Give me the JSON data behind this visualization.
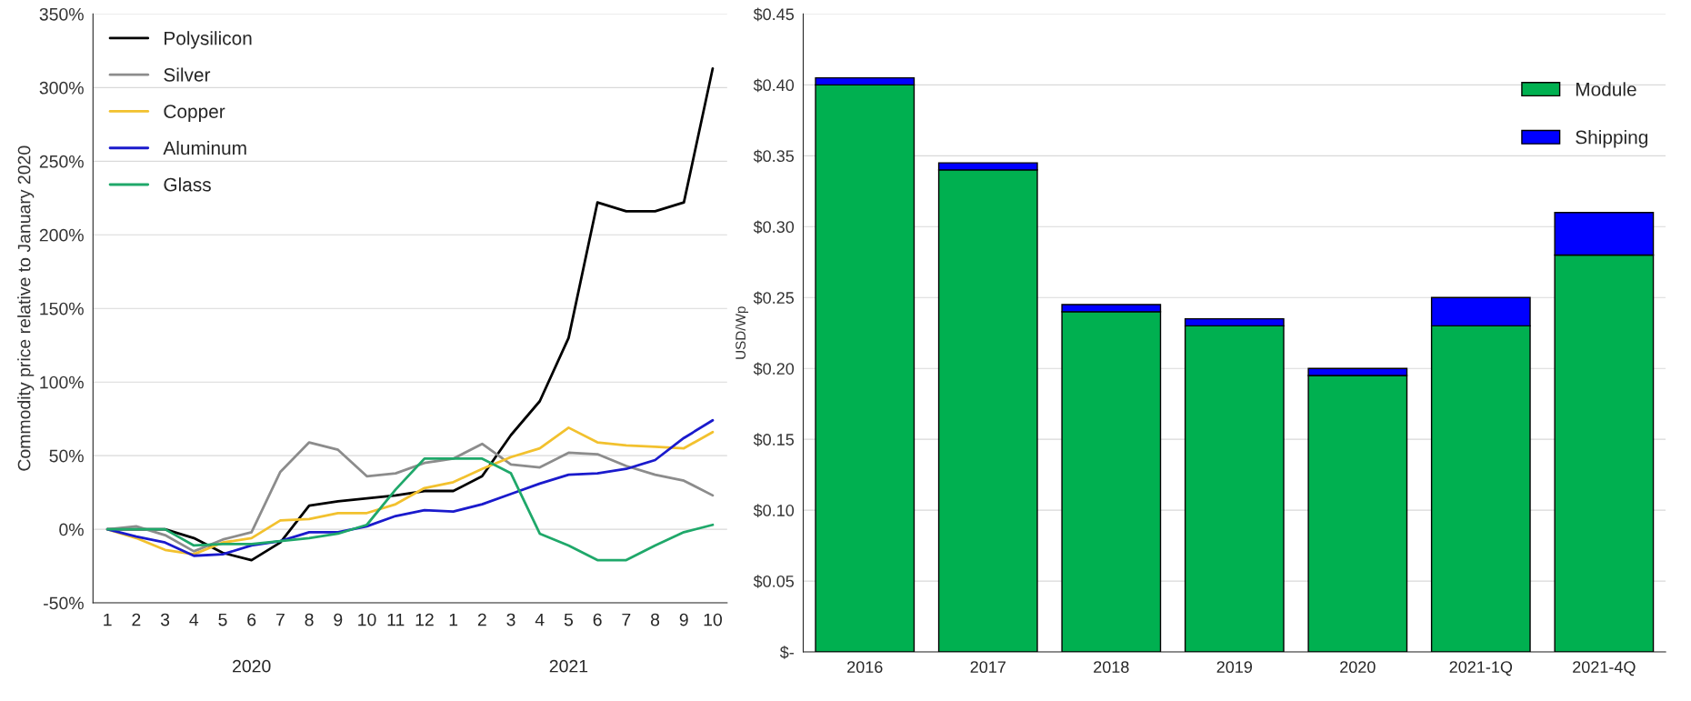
{
  "chart_data": [
    {
      "type": "line",
      "ylabel": "Commodity price relative to January 2020",
      "categories": [
        "1",
        "2",
        "3",
        "4",
        "5",
        "6",
        "7",
        "8",
        "9",
        "10",
        "11",
        "12",
        "1",
        "2",
        "3",
        "4",
        "5",
        "6",
        "7",
        "8",
        "9",
        "10"
      ],
      "series": [
        {
          "name": "Polysilicon",
          "color": "#000000",
          "values": [
            0,
            0,
            0,
            -6,
            -16,
            -21,
            -9,
            16,
            19,
            21,
            23,
            26,
            26,
            36,
            64,
            87,
            130,
            222,
            216,
            216,
            222,
            313
          ]
        },
        {
          "name": "Silver",
          "color": "#8c8c8c",
          "values": [
            0,
            2,
            -4,
            -15,
            -7,
            -2,
            39,
            59,
            54,
            36,
            38,
            45,
            48,
            58,
            44,
            42,
            52,
            51,
            43,
            37,
            33,
            23
          ]
        },
        {
          "name": "Copper",
          "color": "#f2c12e",
          "values": [
            0,
            -6,
            -14,
            -17,
            -9,
            -6,
            6,
            7,
            11,
            11,
            17,
            28,
            32,
            41,
            49,
            55,
            69,
            59,
            57,
            56,
            55,
            66
          ]
        },
        {
          "name": "Aluminum",
          "color": "#1a1acc",
          "values": [
            0,
            -5,
            -9,
            -18,
            -17,
            -11,
            -8,
            -2,
            -2,
            2,
            9,
            13,
            12,
            17,
            24,
            31,
            37,
            38,
            41,
            47,
            62,
            74
          ]
        },
        {
          "name": "Glass",
          "color": "#1fa86a",
          "values": [
            0,
            0,
            0,
            -11,
            -10,
            -10,
            -8,
            -6,
            -3,
            3,
            27,
            48,
            48,
            48,
            38,
            -3,
            -11,
            -21,
            -21,
            -11,
            -2,
            3
          ]
        }
      ],
      "ylim": [
        -50,
        350
      ],
      "yticks": [
        {
          "value": -50,
          "label": "-50%"
        },
        {
          "value": 0,
          "label": "0%"
        },
        {
          "value": 50,
          "label": "50%"
        },
        {
          "value": 100,
          "label": "100%"
        },
        {
          "value": 150,
          "label": "150%"
        },
        {
          "value": 200,
          "label": "200%"
        },
        {
          "value": 250,
          "label": "250%"
        },
        {
          "value": 300,
          "label": "300%"
        },
        {
          "value": 350,
          "label": "350%"
        }
      ],
      "annotations": [
        "2020",
        "2021"
      ],
      "grid": "y",
      "legend": "top left"
    },
    {
      "type": "bar",
      "stacked": true,
      "ylabel": "USD/Wp",
      "categories": [
        "2016",
        "2017",
        "2018",
        "2019",
        "2020",
        "2021-1Q",
        "2021-4Q"
      ],
      "series": [
        {
          "name": "Module",
          "color": "#00b050",
          "values": [
            0.4,
            0.34,
            0.24,
            0.23,
            0.195,
            0.23,
            0.28
          ]
        },
        {
          "name": "Shipping",
          "color": "#0000ff",
          "values": [
            0.005,
            0.005,
            0.005,
            0.005,
            0.005,
            0.02,
            0.03
          ]
        }
      ],
      "ylim": [
        0,
        0.45
      ],
      "yticks": [
        {
          "value": 0,
          "label": "$-"
        },
        {
          "value": 0.05,
          "label": "$0.05"
        },
        {
          "value": 0.1,
          "label": "$0.10"
        },
        {
          "value": 0.15,
          "label": "$0.15"
        },
        {
          "value": 0.2,
          "label": "$0.20"
        },
        {
          "value": 0.25,
          "label": "$0.25"
        },
        {
          "value": 0.3,
          "label": "$0.30"
        },
        {
          "value": 0.35,
          "label": "$0.35"
        },
        {
          "value": 0.4,
          "label": "$0.40"
        },
        {
          "value": 0.45,
          "label": "$0.45"
        }
      ],
      "grid": "y",
      "legend": "top right"
    }
  ]
}
